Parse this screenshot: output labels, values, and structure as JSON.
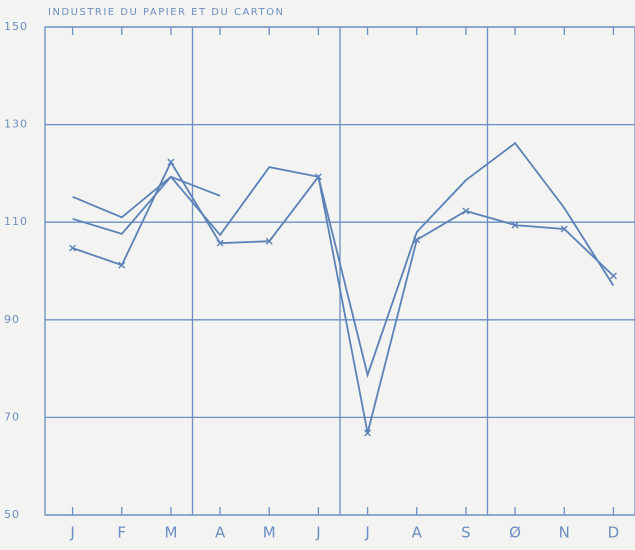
{
  "chart_data": {
    "type": "line",
    "title": "INDUSTRIE DU PAPIER ET DU CARTON",
    "categories": [
      "J",
      "F",
      "M",
      "A",
      "M",
      "J",
      "J",
      "A",
      "S",
      "Ø",
      "N",
      "D"
    ],
    "series": [
      {
        "color": "#5a82b8",
        "values": [
          115.2,
          111,
          119.3,
          107.4,
          121.3,
          119.3,
          78.7,
          108,
          118.6,
          126.2,
          112.9,
          97
        ]
      },
      {
        "color": "#5a82b8",
        "marker": "x",
        "values": [
          104.7,
          101.2,
          122.3,
          105.7,
          106.1,
          119.3,
          66.8,
          106.4,
          112.3,
          109.4,
          108.6,
          99
        ]
      },
      {
        "color": "#5a82b8",
        "values": [
          110.7,
          107.6,
          119.3,
          115.4,
          null,
          null,
          null,
          null,
          null,
          null,
          null,
          null
        ]
      }
    ],
    "ylim": [
      50,
      150
    ],
    "yticks": [
      50,
      70,
      90,
      110,
      130,
      150
    ],
    "grid": true
  }
}
